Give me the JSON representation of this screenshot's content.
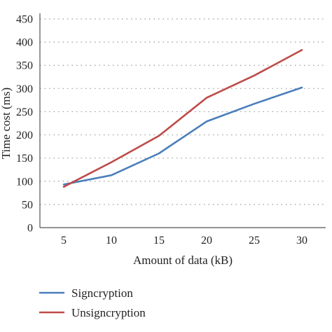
{
  "chart_data": {
    "type": "line",
    "x": [
      5,
      10,
      15,
      20,
      25,
      30
    ],
    "series": [
      {
        "name": "Signcryption",
        "color": "#4a7ebb",
        "values": [
          93,
          113,
          160,
          229,
          267,
          302
        ]
      },
      {
        "name": "Unsigncryption",
        "color": "#be4b48",
        "values": [
          88,
          141,
          198,
          280,
          328,
          383
        ]
      }
    ],
    "xlabel": "Amount of data (kB)",
    "ylabel": "Time cost (ms)",
    "x_tick_labels": [
      "5",
      "10",
      "15",
      "20",
      "25",
      "30"
    ],
    "y_tick_labels": [
      "0",
      "50",
      "100",
      "150",
      "200",
      "250",
      "300",
      "350",
      "400",
      "450"
    ],
    "ylim": [
      0,
      450
    ],
    "grid": "horizontal dotted",
    "legend_position": "bottom-left"
  }
}
